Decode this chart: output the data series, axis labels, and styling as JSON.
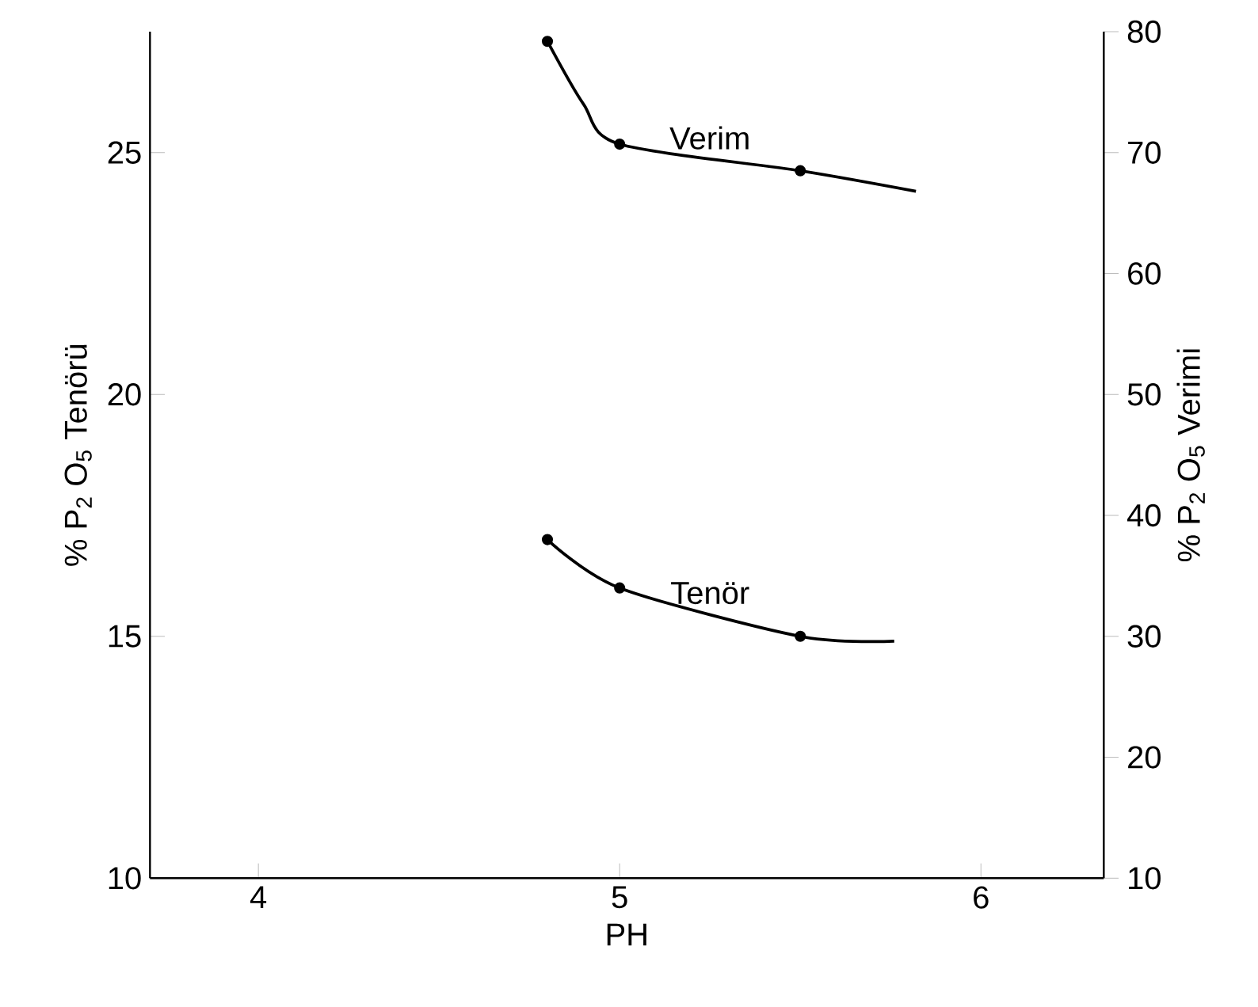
{
  "chart_data": {
    "type": "line",
    "xlabel": "PH",
    "ylabel": "% P$_{2}$ O$_{5}$ Tenörü",
    "y2label": "% P$_{2}$ O$_{5}$ Verimi",
    "xlim": [
      3.7,
      6.34
    ],
    "xticks": [
      4,
      5,
      6
    ],
    "ylim": [
      10,
      27.5
    ],
    "yticks": [
      10,
      15,
      20,
      25
    ],
    "y2lim": [
      10,
      80
    ],
    "y2ticks": [
      10,
      20,
      30,
      40,
      50,
      60,
      70,
      80
    ],
    "series": [
      {
        "name": "Verim",
        "axis": "y2",
        "color": "#000000",
        "x": [
          4.8,
          4.9,
          5.0,
          5.5,
          5.82
        ],
        "values": [
          79.2,
          74,
          70.7,
          68.5,
          66.8
        ]
      },
      {
        "type": "scatter",
        "axis": "y2",
        "marker": "circle",
        "color": "#000000",
        "x": [
          4.8,
          5.0,
          5.5
        ],
        "values": [
          79.2,
          70.7,
          68.5
        ]
      },
      {
        "name": "Tenör",
        "color": "#000000",
        "x": [
          4.8,
          5.0,
          5.5,
          5.76
        ],
        "values": [
          17.0,
          16.0,
          15.0,
          14.9
        ]
      },
      {
        "type": "scatter",
        "marker": "circle",
        "color": "#000000",
        "x": [
          4.8,
          5.0,
          5.5
        ],
        "values": [
          17.0,
          16.0,
          15.0
        ]
      }
    ]
  }
}
